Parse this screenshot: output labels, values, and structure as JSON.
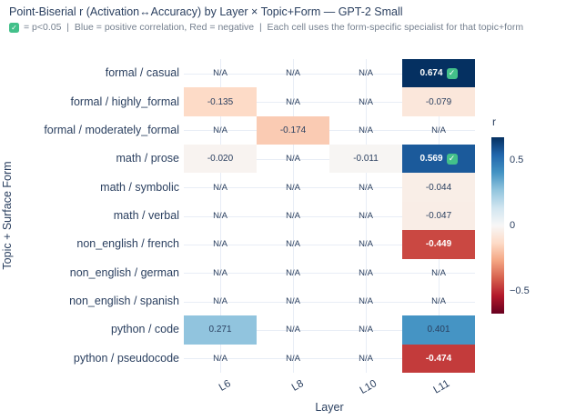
{
  "title": "Point-Biserial r (Activation↔Accuracy) by Layer × Topic+Form — GPT-2 Small",
  "subtitle": {
    "icon": "green-check",
    "text": "= p<0.05  |  Blue = positive correlation, Red = negative  |  Each cell uses the form-specific specialist for that topic+form"
  },
  "chart_data": {
    "type": "heatmap",
    "title": "Point-Biserial r (Activation↔Accuracy) by Layer × Topic+Form — GPT-2 Small",
    "xlabel": "Layer",
    "ylabel": "Topic + Surface Form",
    "x": [
      "L6",
      "L8",
      "L10",
      "L11"
    ],
    "rows": [
      "formal / casual",
      "formal / highly_formal",
      "formal / moderately_formal",
      "math / prose",
      "math / symbolic",
      "math / verbal",
      "non_english / french",
      "non_english / german",
      "non_english / spanish",
      "python / code",
      "python / pseudocode"
    ],
    "values": [
      [
        null,
        null,
        null,
        0.674
      ],
      [
        -0.135,
        null,
        null,
        -0.079
      ],
      [
        null,
        -0.174,
        null,
        null
      ],
      [
        -0.02,
        null,
        -0.011,
        0.569
      ],
      [
        null,
        null,
        null,
        -0.044
      ],
      [
        null,
        null,
        null,
        -0.047
      ],
      [
        null,
        null,
        null,
        -0.449
      ],
      [
        null,
        null,
        null,
        null
      ],
      [
        null,
        null,
        null,
        null
      ],
      [
        0.271,
        null,
        null,
        0.401
      ],
      [
        null,
        null,
        null,
        -0.474
      ]
    ],
    "na_label": "N/A",
    "significant_cells": [
      [
        0,
        3
      ],
      [
        3,
        3
      ]
    ],
    "zmin": -0.674,
    "zmax": 0.674,
    "grid": true,
    "colorbar": {
      "title": "r",
      "ticks": [
        "0.5",
        "0",
        "−0.5"
      ],
      "tick_values": [
        0.5,
        0,
        -0.5
      ]
    },
    "colorscale": [
      [
        0,
        "#67001f"
      ],
      [
        0.1,
        "#b2182b"
      ],
      [
        0.2,
        "#d6604d"
      ],
      [
        0.3,
        "#f4a582"
      ],
      [
        0.4,
        "#fddbc7"
      ],
      [
        0.5,
        "#f7f7f7"
      ],
      [
        0.6,
        "#d1e5f0"
      ],
      [
        0.7,
        "#92c5de"
      ],
      [
        0.8,
        "#4393c3"
      ],
      [
        0.9,
        "#2166ac"
      ],
      [
        1,
        "#053061"
      ]
    ]
  },
  "colors": {
    "title_text": "#2a3f5f",
    "subtitle_text": "#75808f",
    "check_green": "#43c08a",
    "gridline": "#e8edf6",
    "cell_text_dark": "#2a3f5f",
    "cell_text_light": "#ffffff"
  }
}
